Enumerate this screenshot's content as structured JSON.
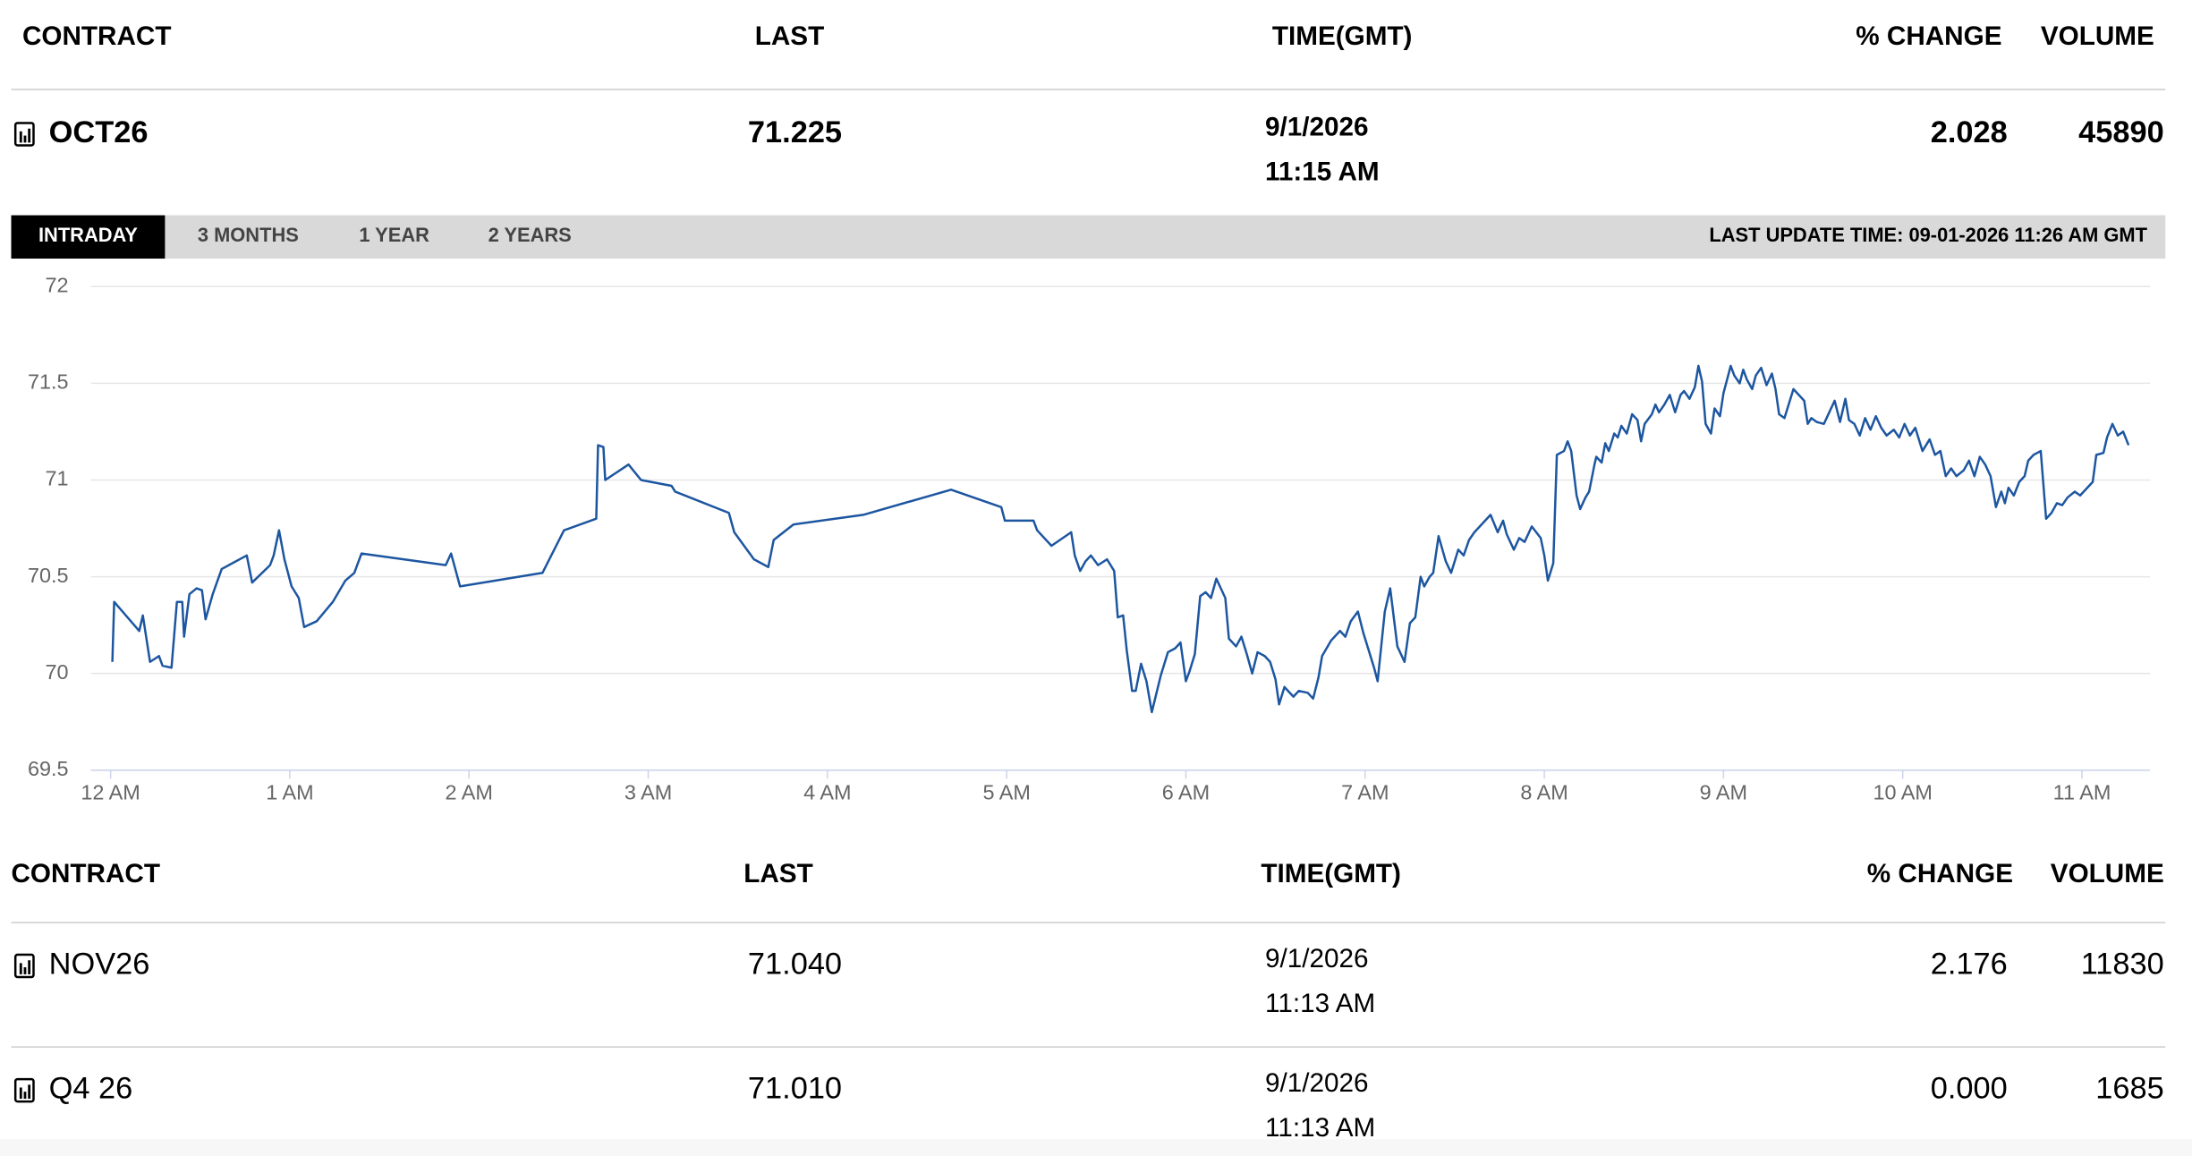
{
  "header": {
    "columns": [
      "CONTRACT",
      "LAST",
      "TIME(GMT)",
      "% CHANGE",
      "VOLUME"
    ]
  },
  "main_row": [
    "OCT26",
    "71.225",
    "9/1/2026",
    "11:15 AM",
    "2.028",
    "45890"
  ],
  "tabs": [
    "INTRADAY",
    "3 MONTHS",
    "1 YEAR",
    "2 YEARS"
  ],
  "selected_tab": 0,
  "last_update": "LAST UPDATE TIME: 09-01-2026 11:26 AM GMT",
  "chart_data": {
    "type": "line",
    "color": "#1d56a0",
    "grid": true,
    "xlim": [
      -0.11,
      11.38
    ],
    "xticks": [
      {
        "value": 0,
        "label": "12 AM"
      },
      {
        "value": 1,
        "label": "1 AM"
      },
      {
        "value": 2,
        "label": "2 AM"
      },
      {
        "value": 3,
        "label": "3 AM"
      },
      {
        "value": 4,
        "label": "4 AM"
      },
      {
        "value": 5,
        "label": "5 AM"
      },
      {
        "value": 6,
        "label": "6 AM"
      },
      {
        "value": 7,
        "label": "7 AM"
      },
      {
        "value": 8,
        "label": "8 AM"
      },
      {
        "value": 9,
        "label": "9 AM"
      },
      {
        "value": 10,
        "label": "10 AM"
      },
      {
        "value": 11,
        "label": "11 AM"
      }
    ],
    "ylim": [
      69.5,
      72
    ],
    "yticks": [
      69.5,
      70,
      70.5,
      71,
      71.5,
      72
    ],
    "x": [
      0.01,
      0.02,
      0.16,
      0.18,
      0.22,
      0.27,
      0.29,
      0.34,
      0.37,
      0.4,
      0.41,
      0.44,
      0.48,
      0.51,
      0.53,
      0.57,
      0.62,
      0.76,
      0.79,
      0.89,
      0.91,
      0.94,
      0.97,
      1.01,
      1.05,
      1.08,
      1.15,
      1.24,
      1.31,
      1.36,
      1.4,
      1.87,
      1.9,
      1.95,
      2.41,
      2.53,
      2.71,
      2.72,
      2.75,
      2.76,
      2.89,
      2.96,
      3.13,
      3.15,
      3.45,
      3.48,
      3.59,
      3.67,
      3.7,
      3.81,
      4.2,
      4.69,
      4.97,
      4.99,
      5.15,
      5.17,
      5.25,
      5.36,
      5.38,
      5.41,
      5.44,
      5.47,
      5.51,
      5.56,
      5.6,
      5.62,
      5.65,
      5.67,
      5.7,
      5.72,
      5.75,
      5.78,
      5.81,
      5.86,
      5.9,
      5.94,
      5.97,
      6.0,
      6.02,
      6.05,
      6.08,
      6.11,
      6.14,
      6.17,
      6.22,
      6.24,
      6.28,
      6.31,
      6.34,
      6.37,
      6.4,
      6.44,
      6.47,
      6.5,
      6.52,
      6.55,
      6.6,
      6.63,
      6.68,
      6.71,
      6.74,
      6.76,
      6.81,
      6.86,
      6.89,
      6.92,
      6.96,
      6.99,
      7.03,
      7.05,
      7.07,
      7.11,
      7.14,
      7.18,
      7.22,
      7.25,
      7.28,
      7.31,
      7.33,
      7.36,
      7.38,
      7.41,
      7.45,
      7.48,
      7.52,
      7.55,
      7.58,
      7.61,
      7.64,
      7.7,
      7.74,
      7.77,
      7.79,
      7.83,
      7.86,
      7.89,
      7.93,
      7.98,
      8.0,
      8.02,
      8.05,
      8.07,
      8.11,
      8.13,
      8.15,
      8.18,
      8.2,
      8.23,
      8.25,
      8.28,
      8.29,
      8.32,
      8.34,
      8.36,
      8.39,
      8.41,
      8.43,
      8.46,
      8.49,
      8.52,
      8.54,
      8.56,
      8.6,
      8.62,
      8.64,
      8.67,
      8.7,
      8.73,
      8.76,
      8.78,
      8.81,
      8.84,
      8.86,
      8.88,
      8.9,
      8.93,
      8.95,
      8.98,
      9.0,
      9.04,
      9.06,
      9.09,
      9.11,
      9.13,
      9.16,
      9.18,
      9.21,
      9.24,
      9.27,
      9.29,
      9.31,
      9.34,
      9.36,
      9.39,
      9.42,
      9.45,
      9.47,
      9.49,
      9.52,
      9.56,
      9.59,
      9.62,
      9.65,
      9.68,
      9.7,
      9.73,
      9.76,
      9.79,
      9.82,
      9.85,
      9.88,
      9.91,
      9.95,
      9.98,
      10.01,
      10.04,
      10.07,
      10.11,
      10.15,
      10.18,
      10.21,
      10.24,
      10.27,
      10.3,
      10.34,
      10.37,
      10.4,
      10.43,
      10.46,
      10.49,
      10.52,
      10.55,
      10.57,
      10.59,
      10.62,
      10.65,
      10.68,
      10.7,
      10.73,
      10.77,
      10.8,
      10.83,
      10.86,
      10.89,
      10.92,
      10.96,
      10.99,
      11.03,
      11.06,
      11.08,
      11.12,
      11.14,
      11.17,
      11.2,
      11.23,
      11.26
    ],
    "values": [
      70.06,
      70.37,
      70.22,
      70.3,
      70.06,
      70.09,
      70.04,
      70.03,
      70.37,
      70.37,
      70.19,
      70.41,
      70.44,
      70.43,
      70.28,
      70.41,
      70.54,
      70.61,
      70.47,
      70.56,
      70.61,
      70.74,
      70.59,
      70.45,
      70.39,
      70.24,
      70.27,
      70.37,
      70.48,
      70.52,
      70.62,
      70.56,
      70.62,
      70.45,
      70.52,
      70.74,
      70.8,
      71.18,
      71.17,
      71.0,
      71.08,
      71.0,
      70.97,
      70.94,
      70.83,
      70.73,
      70.59,
      70.55,
      70.69,
      70.77,
      70.82,
      70.95,
      70.86,
      70.79,
      70.79,
      70.74,
      70.66,
      70.73,
      70.61,
      70.53,
      70.58,
      70.61,
      70.56,
      70.59,
      70.53,
      70.29,
      70.3,
      70.12,
      69.91,
      69.91,
      70.05,
      69.96,
      69.8,
      69.99,
      70.11,
      70.13,
      70.16,
      69.96,
      70.01,
      70.1,
      70.4,
      70.42,
      70.39,
      70.49,
      70.39,
      70.18,
      70.14,
      70.19,
      70.1,
      70.0,
      70.11,
      70.09,
      70.06,
      69.97,
      69.84,
      69.93,
      69.88,
      69.91,
      69.9,
      69.87,
      69.98,
      70.09,
      70.17,
      70.22,
      70.19,
      70.27,
      70.32,
      70.21,
      70.09,
      70.03,
      69.96,
      70.32,
      70.44,
      70.14,
      70.06,
      70.26,
      70.29,
      70.5,
      70.45,
      70.5,
      70.52,
      70.71,
      70.58,
      70.52,
      70.64,
      70.61,
      70.69,
      70.73,
      70.76,
      70.82,
      70.73,
      70.79,
      70.72,
      70.64,
      70.7,
      70.68,
      70.76,
      70.7,
      70.61,
      70.48,
      70.57,
      71.13,
      71.15,
      71.2,
      71.15,
      70.92,
      70.85,
      70.91,
      70.94,
      71.08,
      71.12,
      71.09,
      71.19,
      71.15,
      71.24,
      71.22,
      71.28,
      71.24,
      71.34,
      71.31,
      71.2,
      71.29,
      71.34,
      71.39,
      71.35,
      71.39,
      71.44,
      71.35,
      71.44,
      71.46,
      71.42,
      71.48,
      71.59,
      71.51,
      71.29,
      71.24,
      71.37,
      71.33,
      71.45,
      71.59,
      71.54,
      71.5,
      71.57,
      71.52,
      71.47,
      71.54,
      71.58,
      71.49,
      71.55,
      71.47,
      71.34,
      71.32,
      71.38,
      71.47,
      71.44,
      71.41,
      71.29,
      71.32,
      71.3,
      71.29,
      71.35,
      71.41,
      71.3,
      71.42,
      71.31,
      71.29,
      71.23,
      71.32,
      71.26,
      71.33,
      71.27,
      71.23,
      71.26,
      71.22,
      71.29,
      71.23,
      71.27,
      71.15,
      71.21,
      71.13,
      71.15,
      71.02,
      71.06,
      71.02,
      71.05,
      71.1,
      71.02,
      71.12,
      71.08,
      71.02,
      70.86,
      70.94,
      70.88,
      70.96,
      70.92,
      70.99,
      71.02,
      71.1,
      71.13,
      71.15,
      70.8,
      70.83,
      70.88,
      70.87,
      70.91,
      70.94,
      70.92,
      70.96,
      70.99,
      71.13,
      71.14,
      71.22,
      71.29,
      71.23,
      71.25,
      71.18
    ]
  },
  "table": {
    "columns": [
      "CONTRACT",
      "LAST",
      "TIME(GMT)",
      "% CHANGE",
      "VOLUME"
    ],
    "rows": [
      [
        "NOV26",
        "71.040",
        "9/1/2026",
        "11:13 AM",
        "2.176",
        "11830"
      ],
      [
        "Q4 26",
        "71.010",
        "9/1/2026",
        "11:13 AM",
        "0.000",
        "1685"
      ]
    ]
  }
}
